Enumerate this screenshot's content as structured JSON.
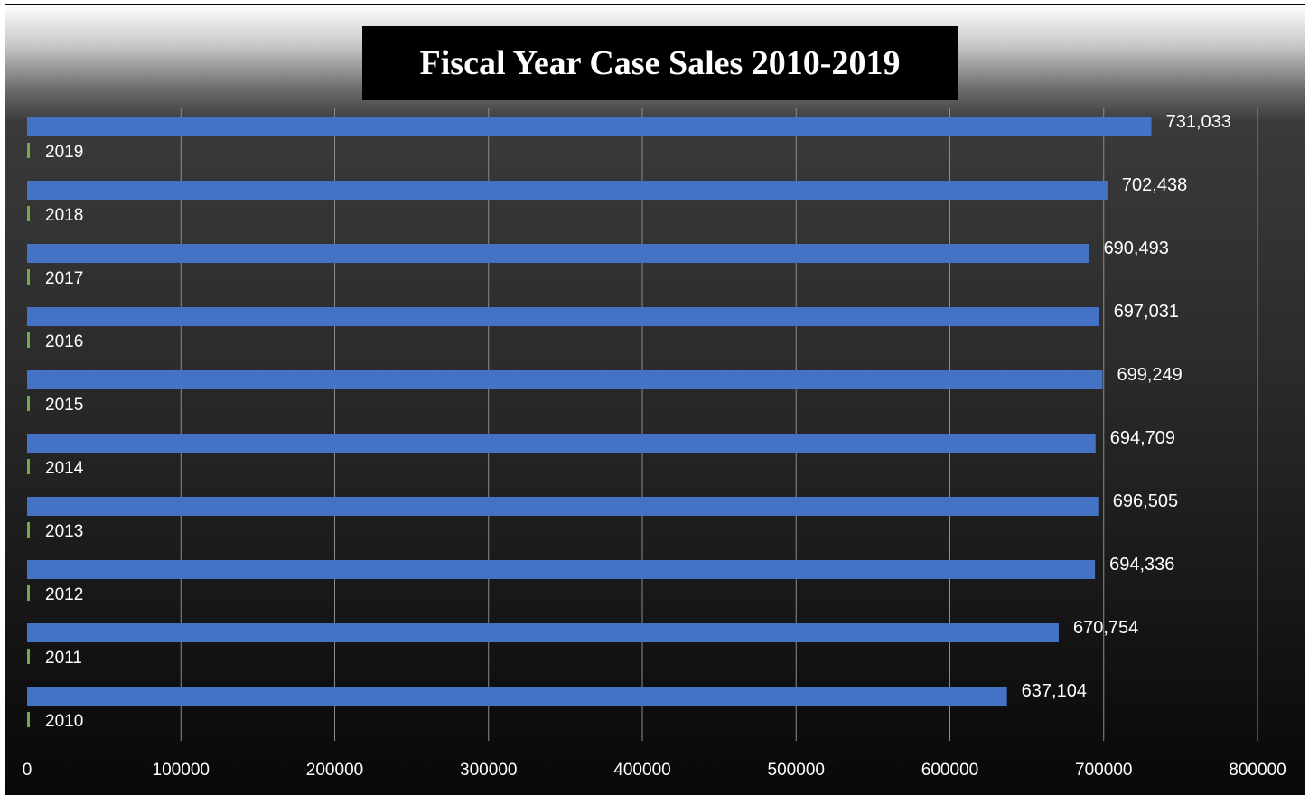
{
  "colors": {
    "bar": "#4472c4",
    "secondary_bar": "#70ad47",
    "gridline": "#8c8c8c",
    "text": "#ffffff",
    "title_background": "#000000"
  },
  "chart_data": {
    "type": "bar",
    "orientation": "horizontal",
    "title": "Fiscal Year Case Sales 2010-2019",
    "categories": [
      "2019",
      "2018",
      "2017",
      "2016",
      "2015",
      "2014",
      "2013",
      "2012",
      "2011",
      "2010"
    ],
    "values": [
      731033,
      702438,
      690493,
      697031,
      699249,
      694709,
      696505,
      694336,
      670754,
      637104
    ],
    "data_labels": [
      "731,033",
      "702,438",
      "690,493",
      "697,031",
      "699,249",
      "694,709",
      "696,505",
      "694,336",
      "670,754",
      "637,104"
    ],
    "x_ticks": [
      "0",
      "100000",
      "200000",
      "300000",
      "400000",
      "500000",
      "600000",
      "700000",
      "800000"
    ],
    "xlim": [
      0,
      800000
    ],
    "xlabel": "",
    "ylabel": "",
    "grid": "vertical",
    "legend": "none"
  }
}
